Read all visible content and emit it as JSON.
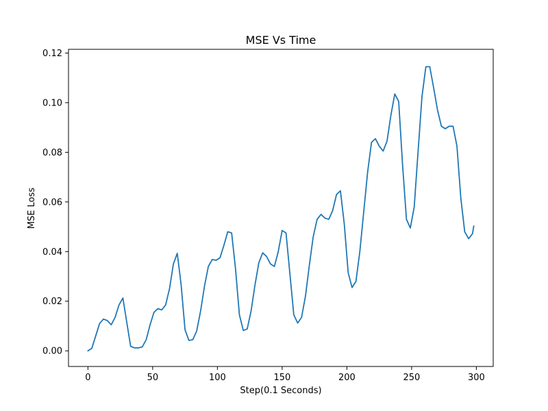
{
  "chart_data": {
    "type": "line",
    "title": "MSE Vs Time",
    "xlabel": "Step(0.1 Seconds)",
    "ylabel": "MSE Loss",
    "xlim": [
      -15,
      313
    ],
    "ylim": [
      -0.0063,
      0.1215
    ],
    "xticks": [
      0,
      50,
      100,
      150,
      200,
      250,
      300
    ],
    "yticks": [
      0.0,
      0.02,
      0.04,
      0.06,
      0.08,
      0.1,
      0.12
    ],
    "xtick_labels": [
      "0",
      "50",
      "100",
      "150",
      "200",
      "250",
      "300"
    ],
    "ytick_labels": [
      "0.00",
      "0.02",
      "0.04",
      "0.06",
      "0.08",
      "0.10",
      "0.12"
    ],
    "grid": false,
    "legend": null,
    "series": [
      {
        "color": "#1f77b4",
        "x": [
          0,
          3,
          6,
          9,
          12,
          15,
          18,
          21,
          24,
          27,
          30,
          33,
          36,
          39,
          42,
          45,
          48,
          51,
          54,
          57,
          60,
          63,
          66,
          69,
          72,
          75,
          78,
          81,
          84,
          87,
          90,
          93,
          96,
          99,
          102,
          105,
          108,
          111,
          114,
          117,
          120,
          123,
          126,
          129,
          132,
          135,
          138,
          141,
          144,
          147,
          150,
          153,
          156,
          159,
          162,
          165,
          168,
          171,
          174,
          177,
          180,
          183,
          186,
          189,
          192,
          195,
          198,
          201,
          204,
          207,
          210,
          213,
          216,
          219,
          222,
          225,
          228,
          231,
          234,
          237,
          240,
          243,
          246,
          249,
          252,
          255,
          258,
          261,
          264,
          267,
          270,
          273,
          276,
          279,
          282,
          285,
          288,
          291,
          294,
          297,
          298
        ],
        "y": [
          0.0,
          0.001,
          0.006,
          0.011,
          0.0128,
          0.0122,
          0.0105,
          0.0135,
          0.0185,
          0.0213,
          0.0115,
          0.0018,
          0.0012,
          0.0012,
          0.0016,
          0.0045,
          0.0105,
          0.0155,
          0.017,
          0.0165,
          0.0185,
          0.025,
          0.035,
          0.0393,
          0.0265,
          0.0085,
          0.0042,
          0.0045,
          0.008,
          0.016,
          0.026,
          0.034,
          0.0368,
          0.0365,
          0.0375,
          0.0425,
          0.048,
          0.0475,
          0.033,
          0.0145,
          0.0082,
          0.0088,
          0.016,
          0.0265,
          0.0355,
          0.0395,
          0.038,
          0.035,
          0.034,
          0.04,
          0.0485,
          0.0475,
          0.031,
          0.0145,
          0.0112,
          0.0135,
          0.022,
          0.0345,
          0.046,
          0.053,
          0.055,
          0.0535,
          0.053,
          0.0565,
          0.063,
          0.0645,
          0.051,
          0.0315,
          0.0255,
          0.028,
          0.04,
          0.056,
          0.072,
          0.084,
          0.0855,
          0.0825,
          0.0805,
          0.0845,
          0.095,
          0.1035,
          0.1005,
          0.075,
          0.053,
          0.0495,
          0.058,
          0.0805,
          0.1025,
          0.1145,
          0.1145,
          0.106,
          0.097,
          0.0905,
          0.0895,
          0.0905,
          0.0905,
          0.0825,
          0.0615,
          0.048,
          0.0452,
          0.0472,
          0.0503
        ]
      }
    ]
  }
}
